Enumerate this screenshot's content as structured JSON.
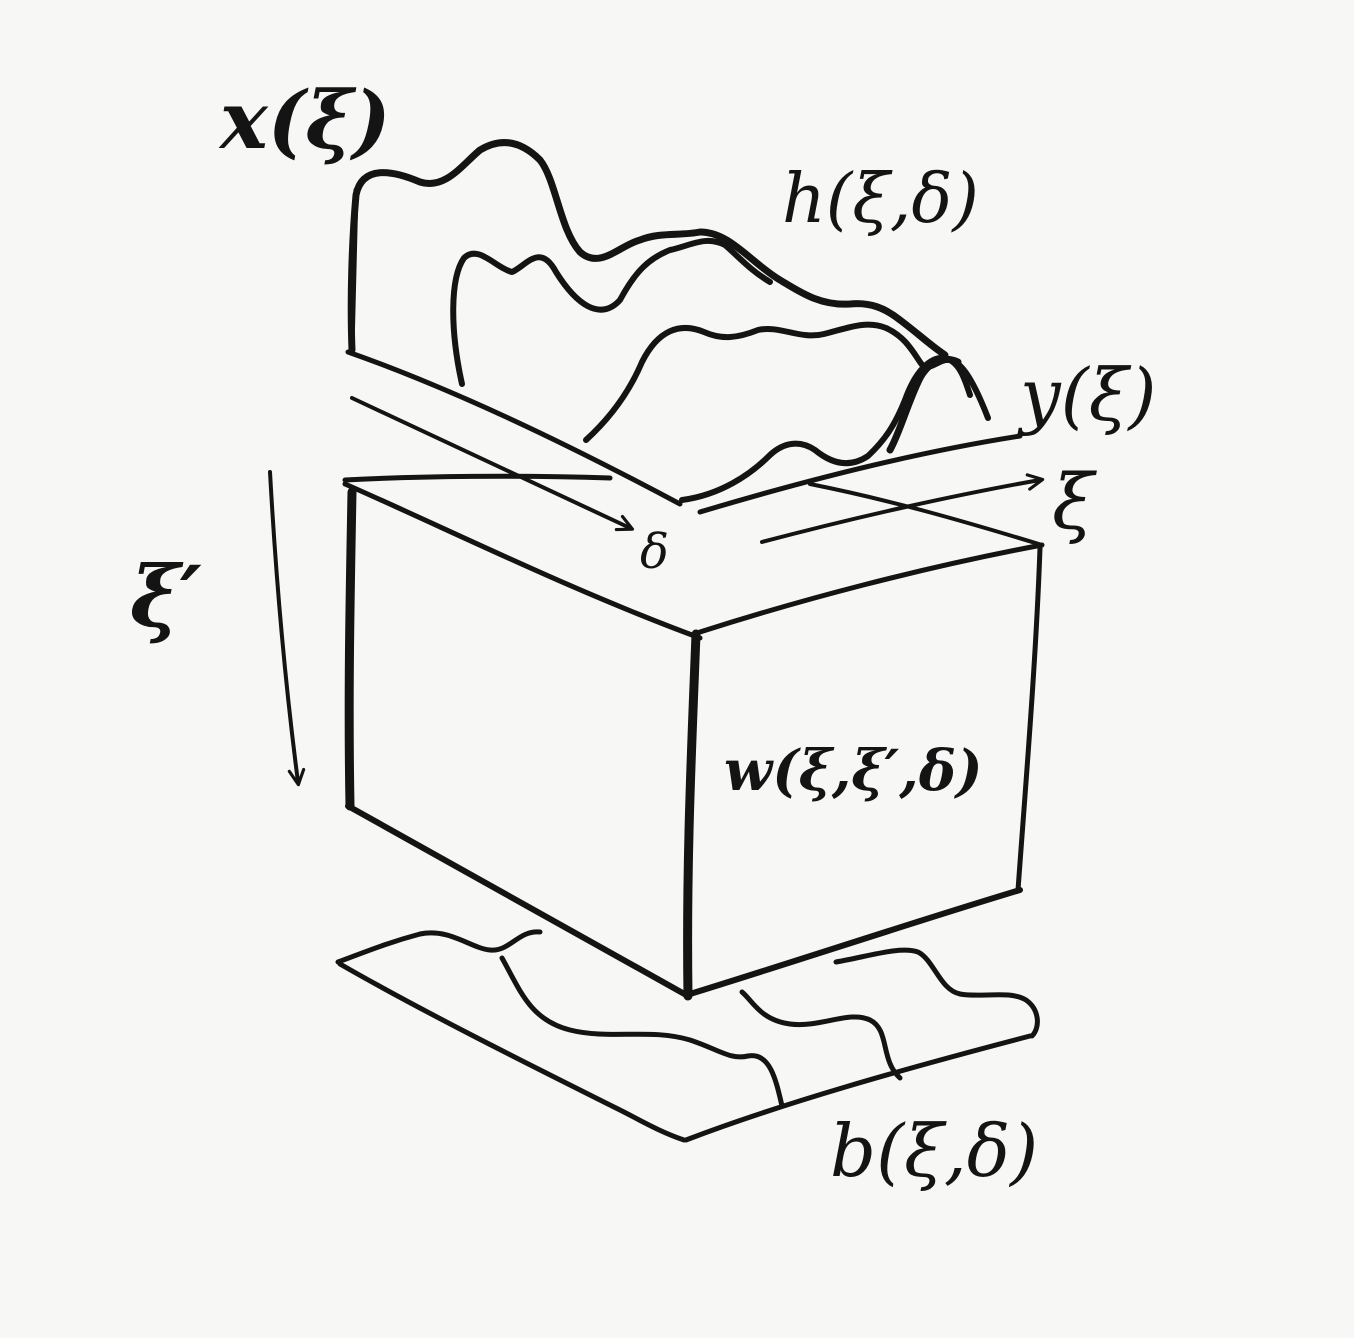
{
  "diagram": {
    "background": "#f7f7f5",
    "ink_color": "#141414",
    "labels": {
      "input_signal": "x(ξ)",
      "impulse_response": "h(ξ,δ)",
      "output_signal": "y(ξ)",
      "delay_axis": "δ",
      "space_axis": "ξ",
      "depth_axis": "ξ′",
      "weight_kernel": "w(ξ,ξ′,δ)",
      "bias_term": "b(ξ,δ)"
    }
  }
}
